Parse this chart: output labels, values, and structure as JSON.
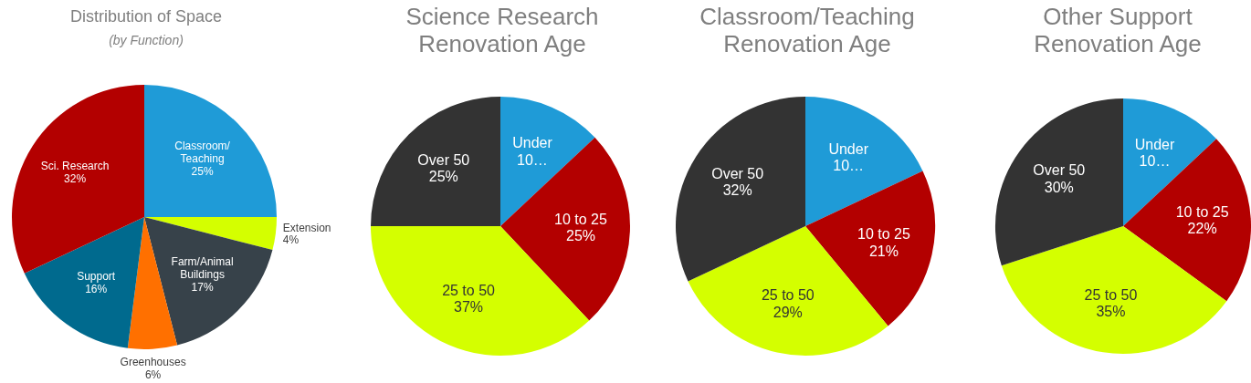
{
  "chart_data": [
    {
      "type": "pie",
      "title": "Distribution of Space",
      "subtitle": "(by Function)",
      "categories": [
        "Classroom/Teaching",
        "Extension",
        "Farm/Animal Buildings",
        "Greenhouses",
        "Support",
        "Sci. Research"
      ],
      "values": [
        25,
        4,
        17,
        6,
        16,
        32
      ],
      "colors": [
        "#1f9bd7",
        "#d4ff00",
        "#37424a",
        "#ff7000",
        "#006a8e",
        "#b30000"
      ],
      "value_labels": [
        "25%",
        "4%",
        "17%",
        "6%",
        "16%",
        "32%"
      ],
      "legend": false
    },
    {
      "type": "pie",
      "title": "Science Research Renovation Age",
      "categories": [
        "Under 10…",
        "10 to 25",
        "25 to 50",
        "Over 50"
      ],
      "values": [
        13,
        25,
        37,
        25
      ],
      "value_labels": [
        null,
        "25%",
        "37%",
        "25%"
      ],
      "colors": [
        "#1f9bd7",
        "#b30000",
        "#d4ff00",
        "#333333"
      ],
      "legend": false
    },
    {
      "type": "pie",
      "title": "Classroom/Teaching Renovation Age",
      "categories": [
        "Under 10…",
        "10 to 25",
        "25 to 50",
        "Over 50"
      ],
      "values": [
        18,
        21,
        29,
        32
      ],
      "value_labels": [
        null,
        "21%",
        "29%",
        "32%"
      ],
      "colors": [
        "#1f9bd7",
        "#b30000",
        "#d4ff00",
        "#333333"
      ],
      "legend": false
    },
    {
      "type": "pie",
      "title": "Other Support Renovation Age",
      "categories": [
        "Under 10…",
        "10 to 25",
        "25 to 50",
        "Over 50"
      ],
      "values": [
        13,
        22,
        35,
        30
      ],
      "value_labels": [
        null,
        "22%",
        "35%",
        "30%"
      ],
      "colors": [
        "#1f9bd7",
        "#b30000",
        "#d4ff00",
        "#333333"
      ],
      "legend": false
    }
  ]
}
